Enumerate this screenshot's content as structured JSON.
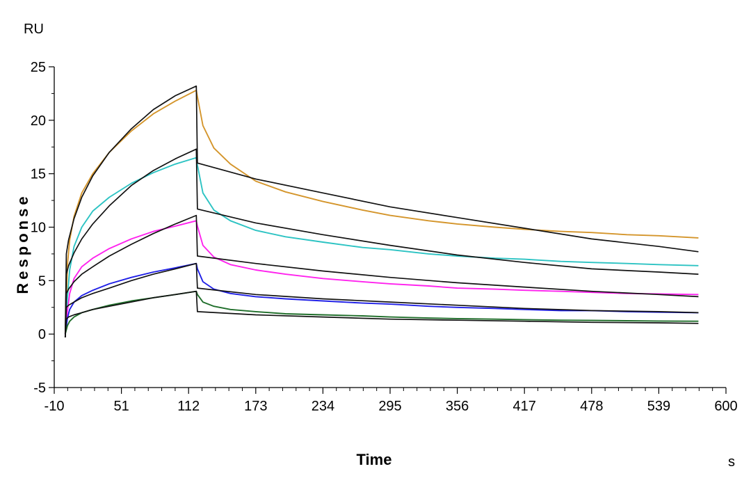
{
  "chart_data": {
    "type": "line",
    "title": "",
    "xlabel": "Time",
    "ylabel": "Response",
    "x_unit": "s",
    "y_unit": "RU",
    "xlim": [
      -10,
      600
    ],
    "ylim": [
      -5,
      25
    ],
    "x_ticks": [
      "-10",
      "51",
      "112",
      "173",
      "234",
      "295",
      "356",
      "417",
      "478",
      "539",
      "600"
    ],
    "y_ticks": [
      "-5",
      "0",
      "5",
      "10",
      "15",
      "20",
      "25"
    ],
    "grid": false,
    "legend": "none",
    "injection_start": 0,
    "injection_end": 120,
    "series": [
      {
        "color": "#d4952b",
        "data_type": "measured",
        "x": [
          0,
          2,
          4,
          8,
          15,
          25,
          40,
          60,
          80,
          100,
          119,
          120,
          125,
          135,
          150,
          173,
          200,
          234,
          270,
          295,
          330,
          356,
          390,
          417,
          450,
          478,
          510,
          539,
          575
        ],
        "y": [
          0,
          6.5,
          8.8,
          11,
          13.2,
          15,
          17,
          19,
          20.6,
          21.8,
          22.8,
          22.2,
          19.5,
          17.4,
          15.9,
          14.3,
          13.3,
          12.4,
          11.6,
          11.1,
          10.6,
          10.3,
          10,
          9.8,
          9.6,
          9.5,
          9.3,
          9.2,
          9
        ]
      },
      {
        "color": "#2cc3c3",
        "data_type": "measured",
        "x": [
          0,
          2,
          4,
          8,
          15,
          25,
          40,
          60,
          80,
          100,
          119,
          120,
          125,
          135,
          150,
          173,
          200,
          234,
          270,
          295,
          330,
          356,
          390,
          417,
          450,
          478,
          510,
          539,
          575
        ],
        "y": [
          0,
          3.5,
          6,
          8.2,
          10,
          11.5,
          12.8,
          14.1,
          15.1,
          15.9,
          16.5,
          15.8,
          13.2,
          11.6,
          10.6,
          9.7,
          9.1,
          8.6,
          8.1,
          7.9,
          7.5,
          7.3,
          7.1,
          7,
          6.8,
          6.7,
          6.6,
          6.5,
          6.4
        ]
      },
      {
        "color": "#ff22ee",
        "data_type": "measured",
        "x": [
          0,
          2,
          4,
          8,
          15,
          25,
          40,
          60,
          80,
          100,
          119,
          120,
          125,
          135,
          150,
          173,
          200,
          234,
          270,
          295,
          330,
          356,
          390,
          417,
          450,
          478,
          510,
          539,
          575
        ],
        "y": [
          0,
          2.2,
          3.8,
          5.2,
          6.3,
          7.1,
          8,
          8.9,
          9.6,
          10.1,
          10.6,
          10.1,
          8.3,
          7.2,
          6.5,
          6,
          5.6,
          5.2,
          4.9,
          4.7,
          4.5,
          4.3,
          4.2,
          4.1,
          4,
          3.9,
          3.8,
          3.75,
          3.7
        ]
      },
      {
        "color": "#1f1fe6",
        "data_type": "measured",
        "x": [
          0,
          2,
          4,
          8,
          15,
          25,
          40,
          60,
          80,
          100,
          119,
          120,
          125,
          135,
          150,
          173,
          200,
          234,
          270,
          295,
          330,
          356,
          390,
          417,
          450,
          478,
          510,
          539,
          575
        ],
        "y": [
          0,
          1.5,
          2.3,
          3,
          3.6,
          4.1,
          4.7,
          5.3,
          5.8,
          6.2,
          6.6,
          6.1,
          4.9,
          4.2,
          3.8,
          3.5,
          3.3,
          3.1,
          2.9,
          2.8,
          2.6,
          2.5,
          2.4,
          2.3,
          2.2,
          2.2,
          2.1,
          2.05,
          2
        ]
      },
      {
        "color": "#1f6e2a",
        "data_type": "measured",
        "x": [
          0,
          2,
          4,
          8,
          15,
          25,
          40,
          60,
          80,
          100,
          119,
          120,
          125,
          135,
          150,
          173,
          200,
          234,
          270,
          295,
          330,
          356,
          390,
          417,
          450,
          478,
          510,
          539,
          575
        ],
        "y": [
          0,
          0.8,
          1.2,
          1.6,
          2,
          2.3,
          2.7,
          3.1,
          3.4,
          3.7,
          4,
          3.7,
          3,
          2.6,
          2.3,
          2.1,
          1.9,
          1.8,
          1.7,
          1.6,
          1.5,
          1.45,
          1.4,
          1.35,
          1.3,
          1.28,
          1.25,
          1.22,
          1.2
        ]
      },
      {
        "color": "#111111",
        "data_type": "fit",
        "x": [
          0,
          1,
          3,
          8,
          15,
          25,
          40,
          60,
          80,
          100,
          119,
          120,
          173,
          234,
          295,
          356,
          417,
          478,
          539,
          575
        ],
        "y": [
          -0.3,
          7.5,
          8.8,
          10.8,
          12.8,
          14.8,
          17,
          19.2,
          21,
          22.3,
          23.2,
          16,
          14.5,
          13.2,
          11.9,
          10.9,
          9.9,
          8.9,
          8.2,
          7.7
        ]
      },
      {
        "color": "#111111",
        "data_type": "fit",
        "x": [
          0,
          1,
          3,
          8,
          15,
          25,
          40,
          60,
          80,
          100,
          119,
          120,
          173,
          234,
          295,
          356,
          417,
          478,
          539,
          575
        ],
        "y": [
          -0.3,
          5.6,
          6.4,
          7.6,
          8.9,
          10.3,
          12,
          13.9,
          15.3,
          16.4,
          17.3,
          11.7,
          10.4,
          9.3,
          8.3,
          7.4,
          6.7,
          6.1,
          5.8,
          5.6
        ]
      },
      {
        "color": "#111111",
        "data_type": "fit",
        "x": [
          0,
          1,
          3,
          8,
          15,
          25,
          40,
          60,
          80,
          100,
          119,
          120,
          173,
          234,
          295,
          356,
          417,
          478,
          539,
          575
        ],
        "y": [
          -0.3,
          3.8,
          4.2,
          4.9,
          5.6,
          6.3,
          7.3,
          8.4,
          9.4,
          10.3,
          11.1,
          7.3,
          6.6,
          5.9,
          5.3,
          4.8,
          4.4,
          4,
          3.7,
          3.5
        ]
      },
      {
        "color": "#111111",
        "data_type": "fit",
        "x": [
          0,
          1,
          3,
          8,
          15,
          25,
          40,
          60,
          80,
          100,
          119,
          120,
          173,
          234,
          295,
          356,
          417,
          478,
          539,
          575
        ],
        "y": [
          -0.3,
          2.5,
          2.7,
          3,
          3.4,
          3.8,
          4.3,
          5,
          5.6,
          6.1,
          6.6,
          4.3,
          3.7,
          3.3,
          3,
          2.7,
          2.4,
          2.2,
          2.1,
          2
        ]
      },
      {
        "color": "#111111",
        "data_type": "fit",
        "x": [
          0,
          1,
          3,
          8,
          15,
          25,
          40,
          60,
          80,
          100,
          119,
          120,
          173,
          234,
          295,
          356,
          417,
          478,
          539,
          575
        ],
        "y": [
          -0.3,
          1.4,
          1.6,
          1.8,
          2,
          2.3,
          2.6,
          3,
          3.4,
          3.7,
          4,
          2.1,
          1.8,
          1.6,
          1.4,
          1.3,
          1.2,
          1.1,
          1.05,
          1
        ]
      }
    ]
  }
}
